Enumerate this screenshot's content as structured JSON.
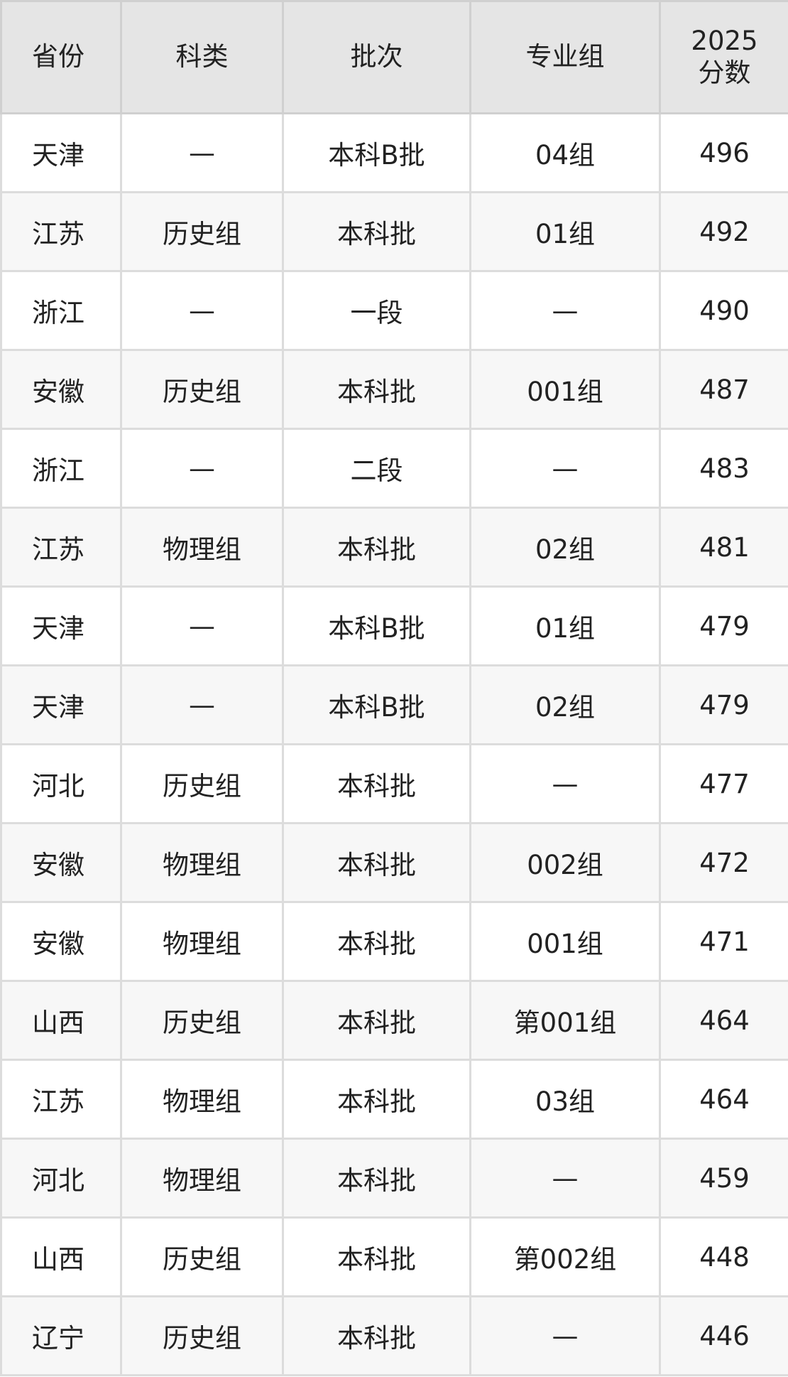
{
  "table": {
    "headers": [
      "省份",
      "科类",
      "批次",
      "专业组",
      "2025\n分数"
    ],
    "header_score_line1": "2025",
    "header_score_line2": "分数",
    "rows": [
      [
        "天津",
        "—",
        "本科B批",
        "04组",
        "496"
      ],
      [
        "江苏",
        "历史组",
        "本科批",
        "01组",
        "492"
      ],
      [
        "浙江",
        "—",
        "一段",
        "—",
        "490"
      ],
      [
        "安徽",
        "历史组",
        "本科批",
        "001组",
        "487"
      ],
      [
        "浙江",
        "—",
        "二段",
        "—",
        "483"
      ],
      [
        "江苏",
        "物理组",
        "本科批",
        "02组",
        "481"
      ],
      [
        "天津",
        "—",
        "本科B批",
        "01组",
        "479"
      ],
      [
        "天津",
        "—",
        "本科B批",
        "02组",
        "479"
      ],
      [
        "河北",
        "历史组",
        "本科批",
        "—",
        "477"
      ],
      [
        "安徽",
        "物理组",
        "本科批",
        "002组",
        "472"
      ],
      [
        "安徽",
        "物理组",
        "本科批",
        "001组",
        "471"
      ],
      [
        "山西",
        "历史组",
        "本科批",
        "第001组",
        "464"
      ],
      [
        "江苏",
        "物理组",
        "本科批",
        "03组",
        "464"
      ],
      [
        "河北",
        "物理组",
        "本科批",
        "—",
        "459"
      ],
      [
        "山西",
        "历史组",
        "本科批",
        "第002组",
        "448"
      ],
      [
        "辽宁",
        "历史组",
        "本科批",
        "—",
        "446"
      ]
    ]
  },
  "colors": {
    "header_bg": "#e5e5e5",
    "row_alt_bg": "#f7f7f7",
    "border": "#dcdcdc",
    "text": "#222222"
  }
}
